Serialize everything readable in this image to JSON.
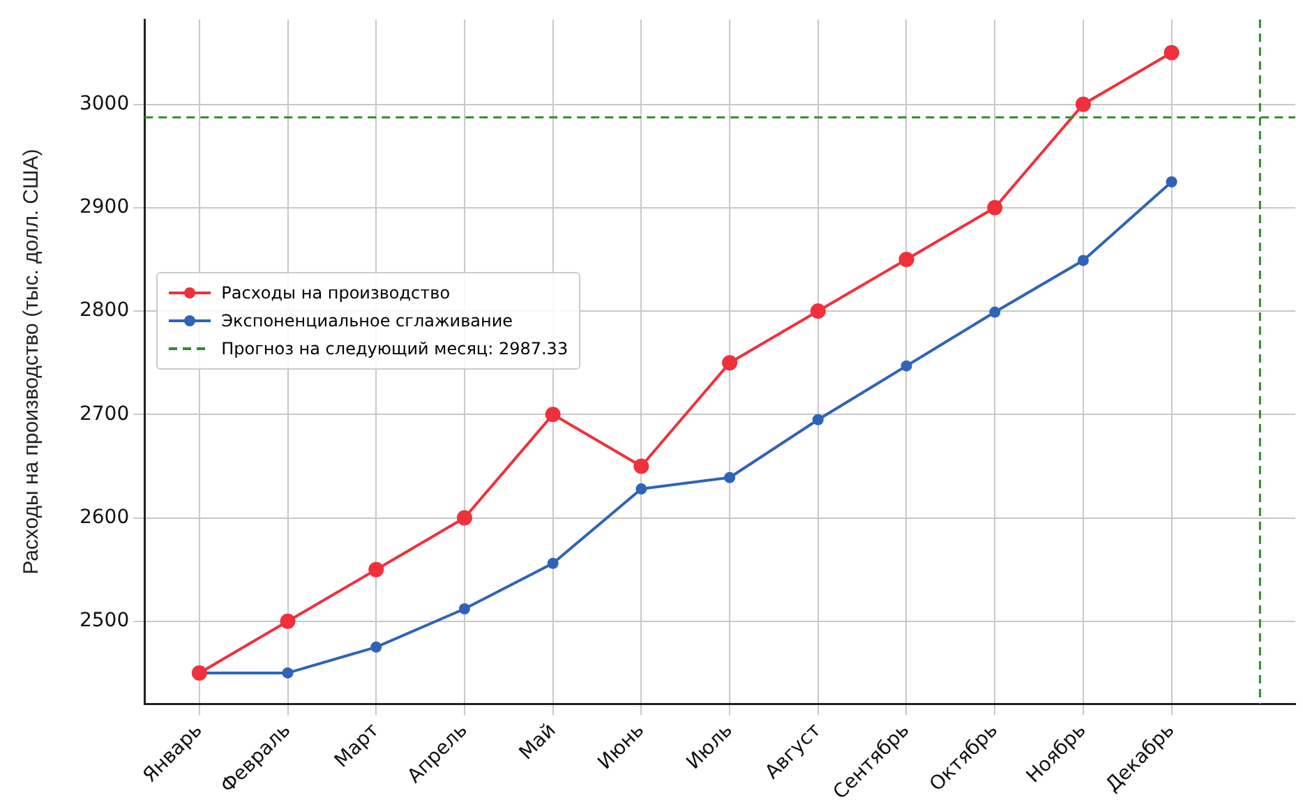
{
  "chart_data": {
    "type": "line",
    "ylabel": "Расходы на производство (тыс. долл. США)",
    "categories": [
      "Январь",
      "Февраль",
      "Март",
      "Апрель",
      "Май",
      "Июнь",
      "Июль",
      "Август",
      "Сентябрь",
      "Октябрь",
      "Ноябрь",
      "Декабрь"
    ],
    "series": [
      {
        "name": "Расходы на производство",
        "color": "#f0303a",
        "values": [
          2450,
          2500,
          2550,
          2600,
          2700,
          2650,
          2750,
          2800,
          2850,
          2900,
          3000,
          3050
        ]
      },
      {
        "name": "Экспоненциальное сглаживание",
        "color": "#2e64b8",
        "values": [
          2450,
          2450,
          2475,
          2512,
          2556,
          2628,
          2639,
          2695,
          2747,
          2799,
          2849,
          2925
        ]
      }
    ],
    "ylim": [
      2420,
      3082
    ],
    "yticks": [
      2500,
      2600,
      2700,
      2800,
      2900,
      3000
    ],
    "ref_lines": [
      {
        "axis": "y",
        "value": 2987.33,
        "label": "Прогноз на следующий месяц: 2987.33",
        "color": "#2e8b2e",
        "line_style": "dashed"
      }
    ],
    "grid": true,
    "legend": "center left",
    "marker": "circle",
    "line_style": "solid"
  }
}
